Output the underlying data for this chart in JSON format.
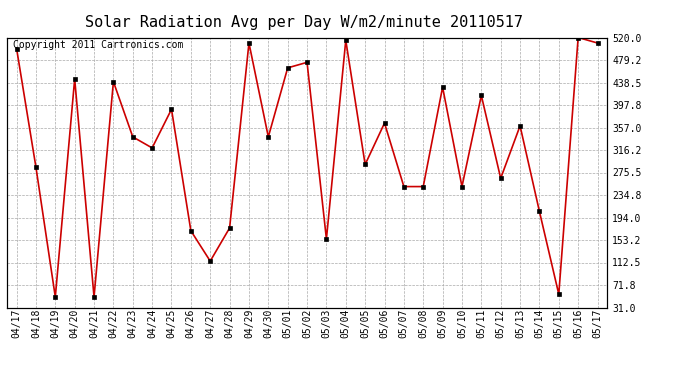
{
  "title": "Solar Radiation Avg per Day W/m2/minute 20110517",
  "copyright": "Copyright 2011 Cartronics.com",
  "labels": [
    "04/17",
    "04/18",
    "04/19",
    "04/20",
    "04/21",
    "04/22",
    "04/23",
    "04/24",
    "04/25",
    "04/26",
    "04/27",
    "04/28",
    "04/29",
    "04/30",
    "05/01",
    "05/02",
    "05/03",
    "05/04",
    "05/05",
    "05/06",
    "05/07",
    "05/08",
    "05/09",
    "05/10",
    "05/11",
    "05/12",
    "05/13",
    "05/14",
    "05/15",
    "05/16",
    "05/17"
  ],
  "values": [
    500,
    285,
    50,
    445,
    50,
    440,
    340,
    320,
    390,
    170,
    115,
    175,
    510,
    340,
    465,
    475,
    155,
    515,
    290,
    365,
    250,
    250,
    430,
    250,
    415,
    265,
    360,
    205,
    55,
    520,
    510
  ],
  "line_color": "#cc0000",
  "marker_color": "#000000",
  "bg_color": "#ffffff",
  "grid_color": "#aaaaaa",
  "yticks": [
    31.0,
    71.8,
    112.5,
    153.2,
    194.0,
    234.8,
    275.5,
    316.2,
    357.0,
    397.8,
    438.5,
    479.2,
    520.0
  ],
  "title_fontsize": 11,
  "copyright_fontsize": 7,
  "tick_fontsize": 7
}
